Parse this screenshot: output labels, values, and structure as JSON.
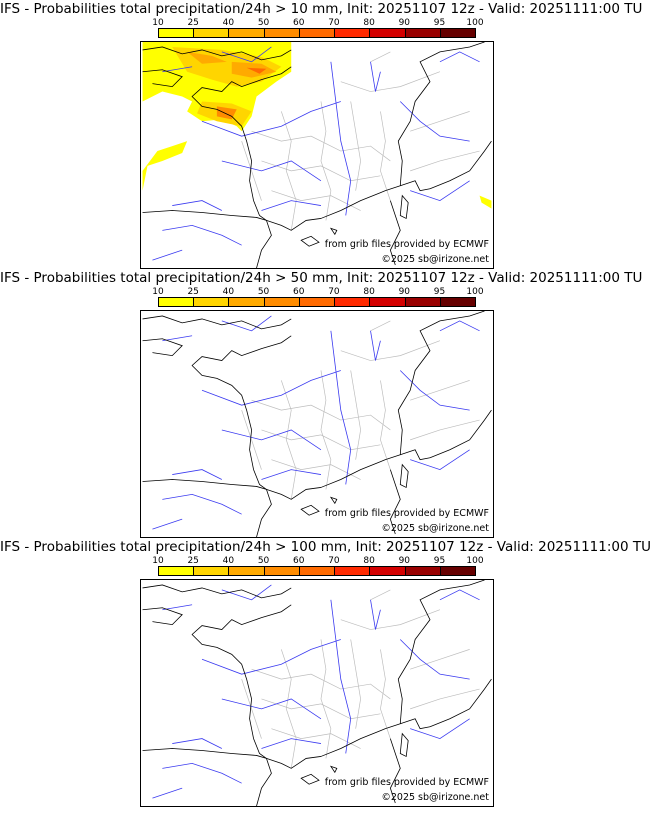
{
  "colorbar": {
    "ticks": [
      "10",
      "25",
      "40",
      "50",
      "60",
      "70",
      "80",
      "90",
      "95",
      "100"
    ],
    "colors": [
      "#ffff00",
      "#ffd500",
      "#ffaa00",
      "#ff8c00",
      "#ff6a00",
      "#ff2a00",
      "#d40000",
      "#990000",
      "#660000"
    ]
  },
  "panels": [
    {
      "title": "IFS - Probabilities total precipitation/24h > 10 mm, Init: 20251107 12z - Valid: 20251111:00 TU"
    },
    {
      "title": "IFS - Probabilities total precipitation/24h > 50 mm, Init: 20251107 12z - Valid: 20251111:00 TU"
    },
    {
      "title": "IFS - Probabilities total precipitation/24h > 100 mm, Init: 20251107 12z - Valid: 20251111:00 TU"
    }
  ],
  "credits": {
    "source": "from grib files provided by ECMWF",
    "copyright": "©2025 sb@irizone.net"
  }
}
